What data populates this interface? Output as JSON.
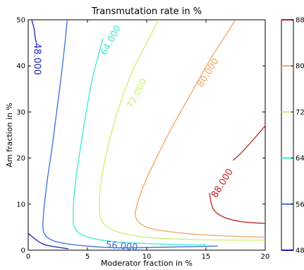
{
  "chart_data": {
    "type": "contour",
    "title": "Transmutation rate in %",
    "xlabel": "Moderator fraction in %",
    "ylabel": "Am fraction in %",
    "xlim": [
      0,
      20
    ],
    "ylim": [
      0,
      50
    ],
    "xticks": [
      "0",
      "5",
      "10",
      "15",
      "20"
    ],
    "yticks": [
      "0",
      "10",
      "20",
      "30",
      "40",
      "50"
    ],
    "colorbar": {
      "ticks": [
        "48",
        "56",
        "64",
        "72",
        "80",
        "88"
      ],
      "min": 48,
      "max": 88
    },
    "levels": [
      {
        "level": 48,
        "color": "#1d1db8",
        "label": "48.000",
        "segments": [
          [
            [
              0.3,
              50
            ],
            [
              0.5,
              48
            ],
            [
              0.6,
              46
            ],
            [
              0.7,
              45
            ]
          ],
          [
            [
              0.0,
              3.7
            ],
            [
              0.3,
              3.0
            ],
            [
              0.8,
              2.0
            ],
            [
              1.2,
              1.4
            ],
            [
              1.7,
              1.0
            ],
            [
              2.6,
              0.6
            ],
            [
              3.4,
              0.3
            ]
          ]
        ]
      },
      {
        "level": 56,
        "color": "#3a6ed8",
        "label": "56.000",
        "segments": [
          [
            [
              3.3,
              50
            ],
            [
              3.1,
              45
            ],
            [
              2.8,
              38
            ],
            [
              2.4,
              30
            ],
            [
              2.0,
              22
            ],
            [
              1.6,
              15
            ],
            [
              1.3,
              8
            ],
            [
              1.3,
              4
            ],
            [
              2.0,
              2.2
            ],
            [
              3.5,
              1.3
            ],
            [
              5.5,
              0.8
            ],
            [
              8.0,
              0.5
            ],
            [
              14.0,
              0.8
            ],
            [
              16.0,
              0.9
            ]
          ]
        ]
      },
      {
        "level": 64,
        "color": "#3ee8d0",
        "label": "64.000",
        "segments": [
          [
            [
              6.3,
              46
            ],
            [
              6.1,
              44
            ],
            [
              5.4,
              37
            ],
            [
              4.9,
              30
            ],
            [
              4.4,
              22
            ],
            [
              4.0,
              15
            ],
            [
              3.8,
              8
            ],
            [
              4.0,
              4.5
            ],
            [
              5.2,
              2.7
            ],
            [
              7.5,
              1.8
            ],
            [
              10.5,
              1.4
            ],
            [
              13.5,
              1.2
            ],
            [
              15.0,
              1.2
            ]
          ]
        ]
      },
      {
        "level": 72,
        "color": "#c8f070",
        "label": "72.000",
        "segments": [
          [
            [
              11.0,
              50
            ],
            [
              10.2,
              46
            ],
            [
              9.0,
              40
            ],
            [
              8.2,
              35
            ],
            [
              7.3,
              28
            ],
            [
              6.6,
              21
            ],
            [
              6.1,
              14
            ],
            [
              6.0,
              9
            ],
            [
              6.3,
              6
            ],
            [
              7.5,
              4
            ],
            [
              10.0,
              2.8
            ],
            [
              14.0,
              2.3
            ],
            [
              18.0,
              2.2
            ],
            [
              20.0,
              2.2
            ]
          ]
        ]
      },
      {
        "level": 80,
        "color": "#f5a560",
        "label": "80.000",
        "segments": [
          [
            [
              17.5,
              50
            ],
            [
              16.5,
              46
            ],
            [
              15.5,
              42
            ],
            [
              14.6,
              38
            ],
            [
              13.3,
              32
            ],
            [
              12.2,
              27
            ],
            [
              11.0,
              21
            ],
            [
              9.9,
              15
            ],
            [
              9.2,
              10
            ],
            [
              9.1,
              7
            ],
            [
              10.0,
              5
            ],
            [
              12.0,
              4
            ],
            [
              15.0,
              3.3
            ],
            [
              20.0,
              2.8
            ]
          ]
        ]
      },
      {
        "level": 88,
        "color": "#c02020",
        "label": "88.000",
        "segments": [
          [
            [
              20.0,
              27
            ],
            [
              19.0,
              24
            ],
            [
              18.0,
              21.2
            ],
            [
              17.3,
              19.5
            ]
          ],
          [
            [
              15.3,
              12.4
            ],
            [
              15.6,
              9
            ],
            [
              16.5,
              7.2
            ],
            [
              18.0,
              6.2
            ],
            [
              20.0,
              5.8
            ]
          ]
        ]
      }
    ]
  }
}
